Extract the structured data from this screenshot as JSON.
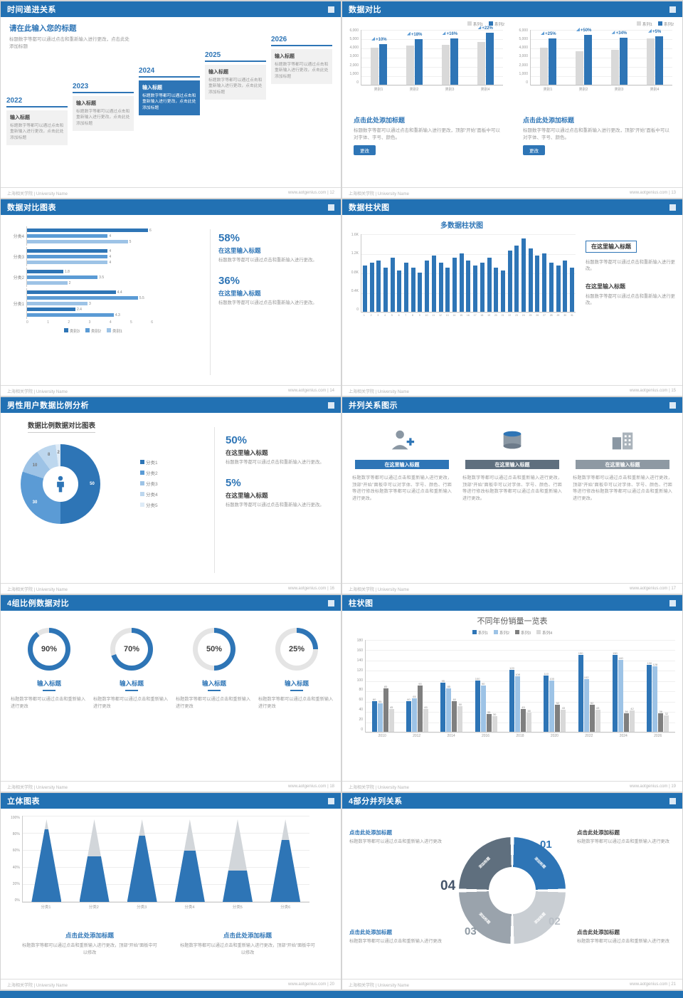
{
  "footer": {
    "left": "上海相关学院 | University Name",
    "url": "www.aotgenius.com",
    "sep": " | "
  },
  "palette": {
    "header_blue": "#2271b3",
    "accent_blue": "#2e75b6",
    "mid_blue": "#5b9bd5",
    "light_blue": "#9dc3e6",
    "gray_bar": "#d9d9d9",
    "dark_gray": "#7f7f7f"
  },
  "slides": {
    "s1": {
      "page": "12",
      "title": "时间递进关系",
      "intro_title": "请在此输入您的标题",
      "intro_body": "标题数字等都可以通过点击和重新输入进行更改，点击此处添加标题",
      "steps": [
        {
          "year": "2022",
          "label": "输入标题",
          "body": "标题数字等都可以通过点击和重新输入进行更改，点击此处添加标题"
        },
        {
          "year": "2023",
          "label": "输入标题",
          "body": "标题数字等都可以通过点击和重新输入进行更改，点击此处添加标题"
        },
        {
          "year": "2024",
          "label": "输入标题",
          "body": "标题数字等都可以通过点击和重新输入进行更改，点击此处添加标题"
        },
        {
          "year": "2025",
          "label": "输入标题",
          "body": "标题数字等都可以通过点击和重新输入进行更改，点击此处添加标题"
        },
        {
          "year": "2026",
          "label": "输入标题",
          "body": "标题数字等都可以通过点击和重新输入进行更改，点击此处添加标题"
        }
      ]
    },
    "s2": {
      "page": "13",
      "title": "数据对比",
      "legend": [
        "系列1",
        "系列2"
      ],
      "charts": [
        {
          "ylabels": [
            "6,000",
            "5,000",
            "4,000",
            "3,000",
            "2,000",
            "1,000",
            "0"
          ],
          "ymax": 6000,
          "categories": [
            "类别1",
            "类别2",
            "类别3",
            "类别4"
          ],
          "colors": [
            "#d9d9d9",
            "#2e75b6"
          ],
          "series": [
            {
              "name": "系列1",
              "values": [
                4000,
                4200,
                4300,
                4600
              ]
            },
            {
              "name": "系列2",
              "values": [
                4400,
                4950,
                5000,
                5600
              ]
            }
          ],
          "pct": [
            "+10%",
            "+18%",
            "+16%",
            "+22%"
          ]
        },
        {
          "ylabels": [
            "6,000",
            "5,000",
            "4,000",
            "3,000",
            "2,000",
            "1,000",
            "0"
          ],
          "ymax": 6000,
          "categories": [
            "类别1",
            "类别2",
            "类别3",
            "类别4"
          ],
          "colors": [
            "#d9d9d9",
            "#2e75b6"
          ],
          "series": [
            {
              "name": "系列1",
              "values": [
                4000,
                3600,
                3800,
                5000
              ]
            },
            {
              "name": "系列2",
              "values": [
                5000,
                5400,
                5100,
                5250
              ]
            }
          ],
          "pct": [
            "+25%",
            "+50%",
            "+34%",
            "+5%"
          ]
        }
      ],
      "blocks": [
        {
          "heading": "点击此处添加标题",
          "body": "标题数字等都可以通过点击和重新输入进行更改，顶部“开始”面板中可以对字体、字号、颜色。",
          "button": "更改"
        },
        {
          "heading": "点击此处添加标题",
          "body": "标题数字等都可以通过点击和重新输入进行更改，顶部“开始”面板中可以对字体、字号、颜色。",
          "button": "更改"
        }
      ]
    },
    "s3": {
      "page": "14",
      "title": "数据对比图表",
      "chart": {
        "xmax": 6,
        "xlabels": [
          "0",
          "1",
          "2",
          "3",
          "4",
          "5",
          "6"
        ],
        "colors": [
          "#2e75b6",
          "#5b9bd5",
          "#9dc3e6"
        ],
        "legend": [
          "类别3",
          "类别2",
          "类别1"
        ],
        "groups": [
          {
            "label": "分类4",
            "bars": [
              {
                "v": 6,
                "s": 0
              },
              {
                "v": 4,
                "s": 1
              },
              {
                "v": 5,
                "s": 2
              }
            ]
          },
          {
            "label": "分类3",
            "bars": [
              {
                "v": 4,
                "s": 0
              },
              {
                "v": 4,
                "s": 1
              },
              {
                "v": 4,
                "s": 2
              }
            ]
          },
          {
            "label": "分类2",
            "bars": [
              {
                "v": 1.8,
                "s": 0
              },
              {
                "v": 3.5,
                "s": 1
              },
              {
                "v": 2,
                "s": 2
              }
            ]
          },
          {
            "label": "分类1",
            "bars": [
              {
                "v": 4.4,
                "s": 0
              },
              {
                "v": 5.5,
                "s": 1
              },
              {
                "v": 3,
                "s": 2
              },
              {
                "v": 2.4,
                "s": 0
              },
              {
                "v": 4.3,
                "s": 1
              }
            ]
          }
        ]
      },
      "stats": [
        {
          "pct": "58%",
          "heading": "在这里输入标题",
          "body": "标题数字等都可以通过点击和重新输入进行更改。"
        },
        {
          "pct": "36%",
          "heading": "在这里输入标题",
          "body": "标题数字等都可以通过点击和重新输入进行更改。"
        }
      ]
    },
    "s4": {
      "page": "15",
      "title": "数据柱状图",
      "chart_title": "多数据柱状图",
      "chart": {
        "ylabels": [
          "1.6K",
          "1.2K",
          "0.8K",
          "0.4K",
          "0"
        ],
        "ymax": 1.6,
        "colors": [
          "#2e75b6"
        ],
        "categories": [
          "1",
          "2",
          "3",
          "4",
          "5",
          "6",
          "7",
          "8",
          "9",
          "10",
          "11",
          "12",
          "13",
          "14",
          "15",
          "16",
          "17",
          "18",
          "19",
          "20",
          "21",
          "22",
          "23",
          "24",
          "25",
          "26",
          "27",
          "28",
          "29",
          "30",
          "31"
        ],
        "series": [
          {
            "name": "数据",
            "values": [
              0.95,
              1.0,
              1.05,
              0.9,
              1.1,
              0.85,
              1.0,
              0.9,
              0.8,
              1.05,
              1.15,
              1.0,
              0.9,
              1.1,
              1.2,
              1.05,
              0.95,
              1.0,
              1.1,
              0.9,
              0.85,
              1.25,
              1.35,
              1.5,
              1.3,
              1.15,
              1.2,
              1.0,
              0.95,
              1.05,
              0.9
            ]
          }
        ]
      },
      "blocks": [
        {
          "heading": "在这里输入标题",
          "body": "标题数字等都可以通过点击和重新输入进行更改。"
        },
        {
          "heading": "在这里输入标题",
          "body": "标题数字等都可以通过点击和重新输入进行更改。"
        }
      ]
    },
    "s5": {
      "page": "16",
      "title": "男性用户数据比例分析",
      "chart_heading": "数据比例数据对比图表",
      "donut": {
        "values": [
          50,
          30,
          10,
          8,
          2
        ],
        "labels": [
          "50",
          "30",
          "10",
          "8",
          "2"
        ],
        "colors": [
          "#2e75b6",
          "#5b9bd5",
          "#9dc3e6",
          "#bdd7ee",
          "#deebf7"
        ]
      },
      "legend": [
        "分类1",
        "分类2",
        "分类3",
        "分类4",
        "分类5"
      ],
      "stats": [
        {
          "pct": "50%",
          "heading": "在这里输入标题",
          "body": "标题数字等都可以通过点击和重新输入进行更改。"
        },
        {
          "pct": "5%",
          "heading": "在这里输入标题",
          "body": "标题数字等都可以通过点击和重新输入进行更改。"
        }
      ]
    },
    "s6": {
      "page": "17",
      "title": "并列关系图示",
      "cols": [
        {
          "label": "在这里输入标题",
          "bar_color": "#2e75b6",
          "body": "标题数字等都可以通过点击和重新输入进行更改，顶部“开始”面板中可以对字体、字号、颜色、行距等进行修改标题数字等都可以通过点击和重新输入进行更改。"
        },
        {
          "label": "在这里输入标题",
          "bar_color": "#5f6f7e",
          "body": "标题数字等都可以通过点击和重新输入进行更改，顶部“开始”面板中可以对字体、字号、颜色、行距等进行修改标题数字等都可以通过点击和重新输入进行更改。"
        },
        {
          "label": "在这里输入标题",
          "bar_color": "#8e99a3",
          "body": "标题数字等都可以通过点击和重新输入进行更改，顶部“开始”面板中可以对字体、字号、颜色、行距等进行修改标题数字等都可以通过点击和重新输入进行更改。"
        }
      ]
    },
    "s7": {
      "page": "18",
      "title": "4组比例数据对比",
      "rings": [
        {
          "pct": 90,
          "label": "90%",
          "heading": "输入标题",
          "body": "标题数字等都可以通过点击和重新输入进行更改"
        },
        {
          "pct": 70,
          "label": "70%",
          "heading": "输入标题",
          "body": "标题数字等都可以通过点击和重新输入进行更改"
        },
        {
          "pct": 50,
          "label": "50%",
          "heading": "输入标题",
          "body": "标题数字等都可以通过点击和重新输入进行更改"
        },
        {
          "pct": 25,
          "label": "25%",
          "heading": "输入标题",
          "body": "标题数字等都可以通过点击和重新输入进行更改"
        }
      ]
    },
    "s8": {
      "page": "19",
      "title": "柱状图",
      "chart_title": "不同年份销量一览表",
      "legend": [
        "系列1",
        "系列2",
        "系列3",
        "系列4"
      ],
      "chart": {
        "ylabels": [
          "180",
          "160",
          "140",
          "120",
          "100",
          "80",
          "60",
          "40",
          "20",
          "0"
        ],
        "ymax": 180,
        "colors": [
          "#2e75b6",
          "#9dc3e6",
          "#7f7f7f",
          "#d9d9d9"
        ],
        "show_values": true,
        "categories": [
          "2010",
          "2012",
          "2014",
          "2016",
          "2018",
          "2020",
          "2022",
          "2024",
          "2026"
        ],
        "series": [
          {
            "name": "系列1",
            "values": [
              60,
              60,
              95,
              100,
              120,
              110,
              150,
              150,
              130
            ]
          },
          {
            "name": "系列2",
            "values": [
              55,
              65,
              85,
              90,
              108,
              100,
              102,
              140,
              128
            ]
          },
          {
            "name": "系列3",
            "values": [
              85,
              90,
              60,
              35,
              45,
              52,
              52,
              36,
              36
            ]
          },
          {
            "name": "系列4",
            "values": [
              45,
              45,
              50,
              30,
              38,
              43,
              43,
              42,
              32
            ]
          }
        ]
      }
    },
    "s9": {
      "page": "20",
      "title": "立体图表",
      "ylabels": [
        "100%",
        "80%",
        "60%",
        "40%",
        "20%",
        "0%"
      ],
      "cones": [
        {
          "label": "分类1",
          "blue": 88
        },
        {
          "label": "分类2",
          "blue": 55
        },
        {
          "label": "分类3",
          "blue": 80
        },
        {
          "label": "分类4",
          "blue": 62
        },
        {
          "label": "分类5",
          "blue": 38
        },
        {
          "label": "分类6",
          "blue": 75
        }
      ],
      "blocks": [
        {
          "heading": "点击此处添加标题",
          "body": "标题数字等都可以通过点击和重新输入进行更改，顶部“开始”面板中可以修改"
        },
        {
          "heading": "点击此处添加标题",
          "body": "标题数字等都可以通过点击和重新输入进行更改，顶部“开始”面板中可以修改"
        }
      ]
    },
    "s10": {
      "page": "21",
      "title": "4部分并列关系",
      "segments": [
        {
          "num": "01",
          "label": "添加标题",
          "color": "#2e75b6",
          "num_color": "#2e75b6"
        },
        {
          "num": "02",
          "label": "添加标题",
          "color": "#c9ced3",
          "num_color": "#b9bfc6"
        },
        {
          "num": "03",
          "label": "添加标题",
          "color": "#9aa3ac",
          "num_color": "#8e99a3"
        },
        {
          "num": "04",
          "label": "添加标题",
          "color": "#5f6f7e",
          "num_color": "#44546a"
        }
      ],
      "blocks": [
        {
          "heading": "点击此处添加标题",
          "body": "标题数字等都可以通过点击和重新输入进行更改"
        },
        {
          "heading": "点击此处添加标题",
          "body": "标题数字等都可以通过点击和重新输入进行更改"
        },
        {
          "heading": "点击此处添加标题",
          "body": "标题数字等都可以通过点击和重新输入进行更改"
        },
        {
          "heading": "点击此处添加标题",
          "body": "标题数字等都可以通过点击和重新输入进行更改"
        }
      ]
    }
  }
}
